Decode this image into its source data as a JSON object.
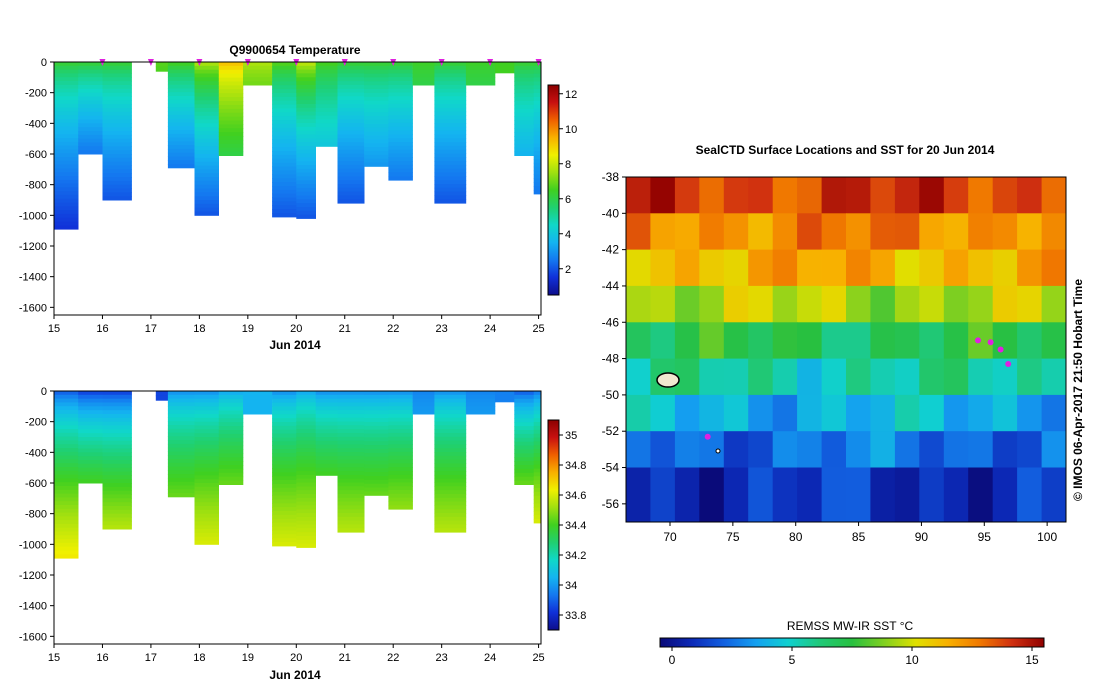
{
  "colors": {
    "marker": "#e020e0",
    "frame": "#000000",
    "background": "#ffffff",
    "temperature_scale": [
      "#0d0d8c",
      "#1030d8",
      "#1478f0",
      "#14b4f0",
      "#10d8c8",
      "#20d070",
      "#40d020",
      "#a0e010",
      "#f0f000",
      "#f8b000",
      "#f06000",
      "#c81010",
      "#8c0000"
    ],
    "salinity_scale": [
      "#0d0d8c",
      "#1030d8",
      "#1478f0",
      "#14b4f0",
      "#10d8c8",
      "#20d070",
      "#40d020",
      "#a0e010",
      "#f0f000",
      "#f8b000",
      "#f06000",
      "#c81010",
      "#8c0000"
    ],
    "sst_scale": [
      "#0a0a78",
      "#0c2ab8",
      "#1260e0",
      "#14a0f0",
      "#10d0d0",
      "#20c878",
      "#28c040",
      "#80d020",
      "#e0e000",
      "#f8b000",
      "#f07800",
      "#d03010",
      "#900000"
    ]
  },
  "chart_data": [
    {
      "type": "heatmap",
      "title": "Q9900654  Temperature",
      "xlabel": "Jun 2014",
      "ylabel": "",
      "xlim": [
        15,
        25.05
      ],
      "ylim": [
        -1650,
        0
      ],
      "xticks": [
        15,
        16,
        17,
        18,
        19,
        20,
        21,
        22,
        23,
        24,
        25
      ],
      "xtick_labels": [
        "15",
        "16",
        "17",
        "18",
        "19",
        "20",
        "21",
        "22",
        "23",
        "24",
        "25"
      ],
      "yticks": [
        0,
        -200,
        -400,
        -600,
        -800,
        -1000,
        -1200,
        -1400,
        -1600
      ],
      "ytick_labels": [
        "0",
        "-200",
        "-400",
        "-600",
        "-800",
        "-1000",
        "-1200",
        "-1400",
        "-1600"
      ],
      "profile_markers": [
        16,
        17,
        18,
        19,
        20,
        21,
        22,
        23,
        24,
        25
      ],
      "colorbar": {
        "range": [
          0.5,
          12.5
        ],
        "ticks": [
          2,
          4,
          6,
          8,
          10,
          12
        ],
        "tick_labels": [
          "2",
          "4",
          "6",
          "8",
          "10",
          "12"
        ]
      },
      "profiles": [
        {
          "x0": 15.0,
          "x1": 15.5,
          "max_depth": 1090,
          "surface": 6.5,
          "bottom": 1.5
        },
        {
          "x0": 15.5,
          "x1": 16.0,
          "max_depth": 600,
          "surface": 6.5,
          "bottom": 2.5
        },
        {
          "x0": 16.0,
          "x1": 16.6,
          "max_depth": 900,
          "surface": 6.5,
          "bottom": 2.0
        },
        {
          "x0": 17.1,
          "x1": 17.35,
          "max_depth": 60,
          "surface": 6.8,
          "bottom": 6.6
        },
        {
          "x0": 17.35,
          "x1": 17.9,
          "max_depth": 690,
          "surface": 6.8,
          "bottom": 2.5
        },
        {
          "x0": 17.9,
          "x1": 18.4,
          "max_depth": 1000,
          "surface": 8.0,
          "bottom": 2.0
        },
        {
          "x0": 18.4,
          "x1": 18.9,
          "max_depth": 610,
          "surface": 9.5,
          "bottom": 6.0
        },
        {
          "x0": 18.9,
          "x1": 19.5,
          "max_depth": 150,
          "surface": 7.8,
          "bottom": 7.0
        },
        {
          "x0": 19.5,
          "x1": 20.0,
          "max_depth": 1010,
          "surface": 7.0,
          "bottom": 2.0
        },
        {
          "x0": 20.0,
          "x1": 20.4,
          "max_depth": 1020,
          "surface": 8.2,
          "bottom": 2.0
        },
        {
          "x0": 20.4,
          "x1": 20.85,
          "max_depth": 550,
          "surface": 6.8,
          "bottom": 4.0
        },
        {
          "x0": 20.85,
          "x1": 21.4,
          "max_depth": 920,
          "surface": 6.5,
          "bottom": 2.0
        },
        {
          "x0": 21.4,
          "x1": 21.9,
          "max_depth": 680,
          "surface": 6.5,
          "bottom": 3.0
        },
        {
          "x0": 21.9,
          "x1": 22.4,
          "max_depth": 770,
          "surface": 6.5,
          "bottom": 2.5
        },
        {
          "x0": 22.4,
          "x1": 22.85,
          "max_depth": 150,
          "surface": 6.5,
          "bottom": 6.0
        },
        {
          "x0": 22.85,
          "x1": 23.5,
          "max_depth": 920,
          "surface": 6.5,
          "bottom": 2.0
        },
        {
          "x0": 23.5,
          "x1": 24.1,
          "max_depth": 150,
          "surface": 6.5,
          "bottom": 6.0
        },
        {
          "x0": 24.1,
          "x1": 24.5,
          "max_depth": 70,
          "surface": 6.5,
          "bottom": 6.5
        },
        {
          "x0": 24.5,
          "x1": 24.9,
          "max_depth": 610,
          "surface": 6.5,
          "bottom": 3.5
        },
        {
          "x0": 24.9,
          "x1": 25.05,
          "max_depth": 860,
          "surface": 6.5,
          "bottom": 2.5
        }
      ]
    },
    {
      "type": "heatmap",
      "title": "",
      "xlabel": "Jun 2014",
      "ylabel": "",
      "xlim": [
        15,
        25.05
      ],
      "ylim": [
        -1650,
        0
      ],
      "xticks": [
        15,
        16,
        17,
        18,
        19,
        20,
        21,
        22,
        23,
        24,
        25
      ],
      "xtick_labels": [
        "15",
        "16",
        "17",
        "18",
        "19",
        "20",
        "21",
        "22",
        "23",
        "24",
        "25"
      ],
      "yticks": [
        0,
        -200,
        -400,
        -600,
        -800,
        -1000,
        -1200,
        -1400,
        -1600
      ],
      "ytick_labels": [
        "0",
        "-200",
        "-400",
        "-600",
        "-800",
        "-1000",
        "-1200",
        "-1400",
        "-1600"
      ],
      "colorbar": {
        "range": [
          33.7,
          35.1
        ],
        "ticks": [
          33.8,
          34,
          34.2,
          34.4,
          34.6,
          34.8,
          35
        ],
        "tick_labels": [
          "33.8",
          "34",
          "34.2",
          "34.4",
          "34.6",
          "34.8",
          "35"
        ]
      },
      "profiles": [
        {
          "x0": 15.0,
          "x1": 15.5,
          "max_depth": 1090,
          "surface": 33.85,
          "bottom": 34.65
        },
        {
          "x0": 15.5,
          "x1": 16.0,
          "max_depth": 600,
          "surface": 33.8,
          "bottom": 34.4
        },
        {
          "x0": 16.0,
          "x1": 16.6,
          "max_depth": 900,
          "surface": 33.8,
          "bottom": 34.55
        },
        {
          "x0": 17.1,
          "x1": 17.35,
          "max_depth": 60,
          "surface": 33.85,
          "bottom": 33.85
        },
        {
          "x0": 17.35,
          "x1": 17.9,
          "max_depth": 690,
          "surface": 33.95,
          "bottom": 34.45
        },
        {
          "x0": 17.9,
          "x1": 18.4,
          "max_depth": 1000,
          "surface": 33.95,
          "bottom": 34.6
        },
        {
          "x0": 18.4,
          "x1": 18.9,
          "max_depth": 610,
          "surface": 34.0,
          "bottom": 34.45
        },
        {
          "x0": 18.9,
          "x1": 19.5,
          "max_depth": 150,
          "surface": 34.05,
          "bottom": 34.05
        },
        {
          "x0": 19.5,
          "x1": 20.0,
          "max_depth": 1010,
          "surface": 33.95,
          "bottom": 34.6
        },
        {
          "x0": 20.0,
          "x1": 20.4,
          "max_depth": 1020,
          "surface": 34.0,
          "bottom": 34.6
        },
        {
          "x0": 20.4,
          "x1": 20.85,
          "max_depth": 550,
          "surface": 33.95,
          "bottom": 34.4
        },
        {
          "x0": 20.85,
          "x1": 21.4,
          "max_depth": 920,
          "surface": 33.95,
          "bottom": 34.55
        },
        {
          "x0": 21.4,
          "x1": 21.9,
          "max_depth": 680,
          "surface": 33.95,
          "bottom": 34.45
        },
        {
          "x0": 21.9,
          "x1": 22.4,
          "max_depth": 770,
          "surface": 33.95,
          "bottom": 34.5
        },
        {
          "x0": 22.4,
          "x1": 22.85,
          "max_depth": 150,
          "surface": 33.95,
          "bottom": 34.0
        },
        {
          "x0": 22.85,
          "x1": 23.5,
          "max_depth": 920,
          "surface": 33.95,
          "bottom": 34.55
        },
        {
          "x0": 23.5,
          "x1": 24.1,
          "max_depth": 150,
          "surface": 33.95,
          "bottom": 34.0
        },
        {
          "x0": 24.1,
          "x1": 24.5,
          "max_depth": 70,
          "surface": 33.95,
          "bottom": 33.95
        },
        {
          "x0": 24.5,
          "x1": 24.9,
          "max_depth": 610,
          "surface": 33.85,
          "bottom": 34.45
        },
        {
          "x0": 24.9,
          "x1": 25.05,
          "max_depth": 860,
          "surface": 33.9,
          "bottom": 34.6
        }
      ]
    },
    {
      "type": "heatmap",
      "title": "SealCTD Surface Locations and SST for 20 Jun 2014",
      "xlabel": "",
      "ylabel": "",
      "xlim": [
        66.5,
        101.5
      ],
      "ylim": [
        -57,
        -38
      ],
      "xticks": [
        70,
        75,
        80,
        85,
        90,
        95,
        100
      ],
      "xtick_labels": [
        "70",
        "75",
        "80",
        "85",
        "90",
        "95",
        "100"
      ],
      "yticks": [
        -38,
        -40,
        -42,
        -44,
        -46,
        -48,
        -50,
        -52,
        -54,
        -56
      ],
      "ytick_labels": [
        "-38",
        "-40",
        "-42",
        "-44",
        "-46",
        "-48",
        "-50",
        "-52",
        "-54",
        "-56"
      ],
      "sst_bands": [
        {
          "lat_north": -38,
          "lat_south": -40,
          "sst": 14.0
        },
        {
          "lat_north": -40,
          "lat_south": -42,
          "sst": 12.5
        },
        {
          "lat_north": -42,
          "lat_south": -44,
          "sst": 11.5
        },
        {
          "lat_north": -44,
          "lat_south": -46,
          "sst": 9.5
        },
        {
          "lat_north": -46,
          "lat_south": -48,
          "sst": 7.0
        },
        {
          "lat_north": -48,
          "lat_south": -50,
          "sst": 5.5
        },
        {
          "lat_north": -50,
          "lat_south": -52,
          "sst": 4.0
        },
        {
          "lat_north": -52,
          "lat_south": -54,
          "sst": 2.5
        },
        {
          "lat_north": -54,
          "lat_south": -57,
          "sst": 1.0
        }
      ],
      "seal_track": [
        {
          "lon": 94.5,
          "lat": -47.0
        },
        {
          "lon": 95.5,
          "lat": -47.1
        },
        {
          "lon": 96.3,
          "lat": -47.5
        },
        {
          "lon": 96.9,
          "lat": -48.3
        },
        {
          "lon": 73.0,
          "lat": -52.3
        }
      ],
      "colorbar": {
        "label": "REMSS MW-IR SST °C",
        "range": [
          -0.5,
          15.5
        ],
        "ticks": [
          0,
          5,
          10,
          15
        ],
        "tick_labels": [
          "0",
          "5",
          "10",
          "15"
        ]
      },
      "annotation": "© IMOS 06-Apr-2017 21:50 Hobart Time"
    }
  ]
}
